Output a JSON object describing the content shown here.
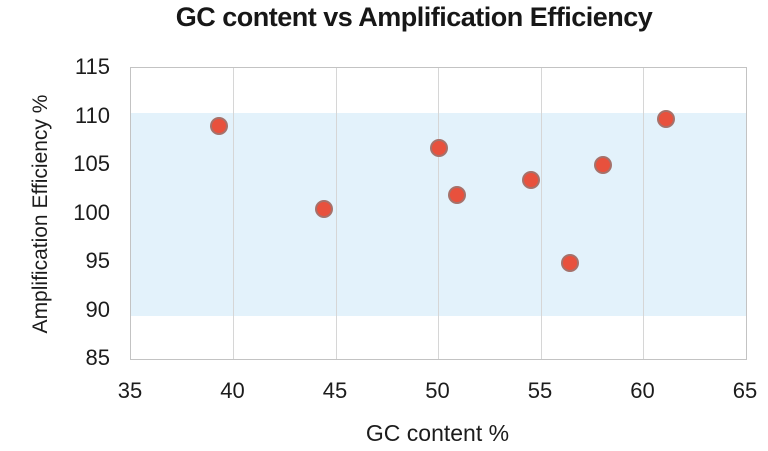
{
  "title": "GC content vs Amplification Efficiency",
  "chart_data": {
    "type": "scatter",
    "title": "GC content vs Amplification Efficiency",
    "xlabel": "GC content %",
    "ylabel": "Amplification Efficiency %",
    "xlim": [
      35,
      65
    ],
    "ylim": [
      85,
      115
    ],
    "xticks": [
      35,
      40,
      45,
      50,
      55,
      60,
      65
    ],
    "yticks": [
      85,
      90,
      95,
      100,
      105,
      110,
      115
    ],
    "grid": "vertical-only",
    "legend": "none",
    "band": {
      "ymin": 89.4,
      "ymax": 110.4
    },
    "points": [
      {
        "x": 39.3,
        "y": 109.0
      },
      {
        "x": 44.4,
        "y": 100.5
      },
      {
        "x": 50.0,
        "y": 106.8
      },
      {
        "x": 50.9,
        "y": 101.9
      },
      {
        "x": 54.5,
        "y": 103.5
      },
      {
        "x": 56.4,
        "y": 94.9
      },
      {
        "x": 58.0,
        "y": 105.0
      },
      {
        "x": 61.1,
        "y": 109.7
      }
    ],
    "colors": {
      "marker_fill": "#e8513d",
      "marker_stroke": "#828282",
      "band": "#e3f2fb",
      "gridline": "#d6d6d6",
      "plot_border": "#c3c3c3",
      "text": "#1c1c1c"
    }
  }
}
